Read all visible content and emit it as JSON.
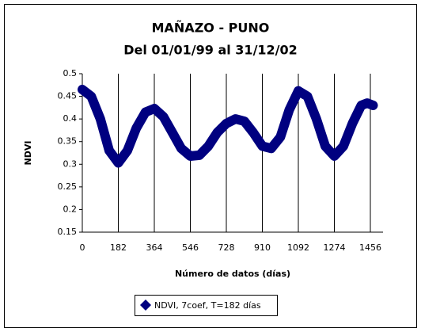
{
  "chart_data": {
    "type": "line",
    "title": "MAÑAZO - PUNO",
    "subtitle": "Del 01/01/99 al 31/12/02",
    "y_label": "NDVI",
    "x_label": "Número de datos (días)",
    "x": [
      0,
      45,
      91,
      136,
      182,
      228,
      273,
      319,
      364,
      410,
      455,
      500,
      546,
      592,
      637,
      682,
      728,
      774,
      819,
      864,
      910,
      955,
      1001,
      1046,
      1092,
      1138,
      1183,
      1228,
      1274,
      1320,
      1365,
      1410,
      1440,
      1470
    ],
    "series": [
      {
        "name": "NDVI, 7coef, T=182 días",
        "color": "#000080",
        "values": [
          0.465,
          0.45,
          0.4,
          0.33,
          0.303,
          0.33,
          0.38,
          0.415,
          0.423,
          0.405,
          0.37,
          0.335,
          0.318,
          0.32,
          0.34,
          0.37,
          0.39,
          0.4,
          0.395,
          0.37,
          0.34,
          0.335,
          0.36,
          0.42,
          0.462,
          0.45,
          0.4,
          0.34,
          0.318,
          0.34,
          0.39,
          0.43,
          0.435,
          0.43
        ]
      }
    ],
    "xlim": [
      0,
      1520
    ],
    "xticks": [
      0,
      182,
      364,
      546,
      728,
      910,
      1092,
      1274,
      1456
    ],
    "ylim": [
      0.15,
      0.5
    ],
    "yticks": [
      0.15,
      0.2,
      0.25,
      0.3,
      0.35,
      0.4,
      0.45,
      0.5
    ],
    "grid_x": true,
    "legend": "bottom"
  }
}
